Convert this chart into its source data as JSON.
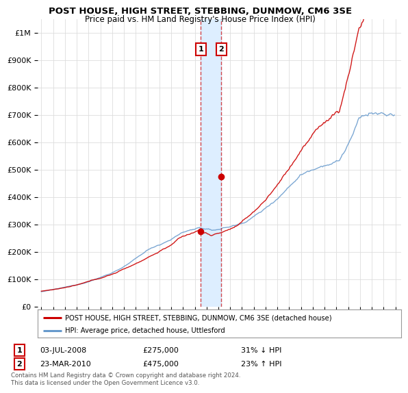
{
  "title": "POST HOUSE, HIGH STREET, STEBBING, DUNMOW, CM6 3SE",
  "subtitle": "Price paid vs. HM Land Registry's House Price Index (HPI)",
  "ylabel_ticks": [
    "£0",
    "£100K",
    "£200K",
    "£300K",
    "£400K",
    "£500K",
    "£600K",
    "£700K",
    "£800K",
    "£900K",
    "£1M"
  ],
  "ytick_values": [
    0,
    100000,
    200000,
    300000,
    400000,
    500000,
    600000,
    700000,
    800000,
    900000,
    1000000
  ],
  "ylim": [
    0,
    1050000
  ],
  "xlim_start": 1994.7,
  "xlim_end": 2025.5,
  "sale1_date": 2008.5,
  "sale1_price": 275000,
  "sale1_label": "03-JUL-2008",
  "sale1_pct": "31% ↓ HPI",
  "sale2_date": 2010.25,
  "sale2_price": 475000,
  "sale2_label": "23-MAR-2010",
  "sale2_pct": "23% ↑ HPI",
  "legend_red": "POST HOUSE, HIGH STREET, STEBBING, DUNMOW, CM6 3SE (detached house)",
  "legend_blue": "HPI: Average price, detached house, Uttlesford",
  "footer": "Contains HM Land Registry data © Crown copyright and database right 2024.\nThis data is licensed under the Open Government Licence v3.0.",
  "background_color": "#ffffff",
  "grid_color": "#dddddd",
  "red_color": "#cc0000",
  "blue_color": "#6699cc",
  "span_color": "#ddeeff"
}
